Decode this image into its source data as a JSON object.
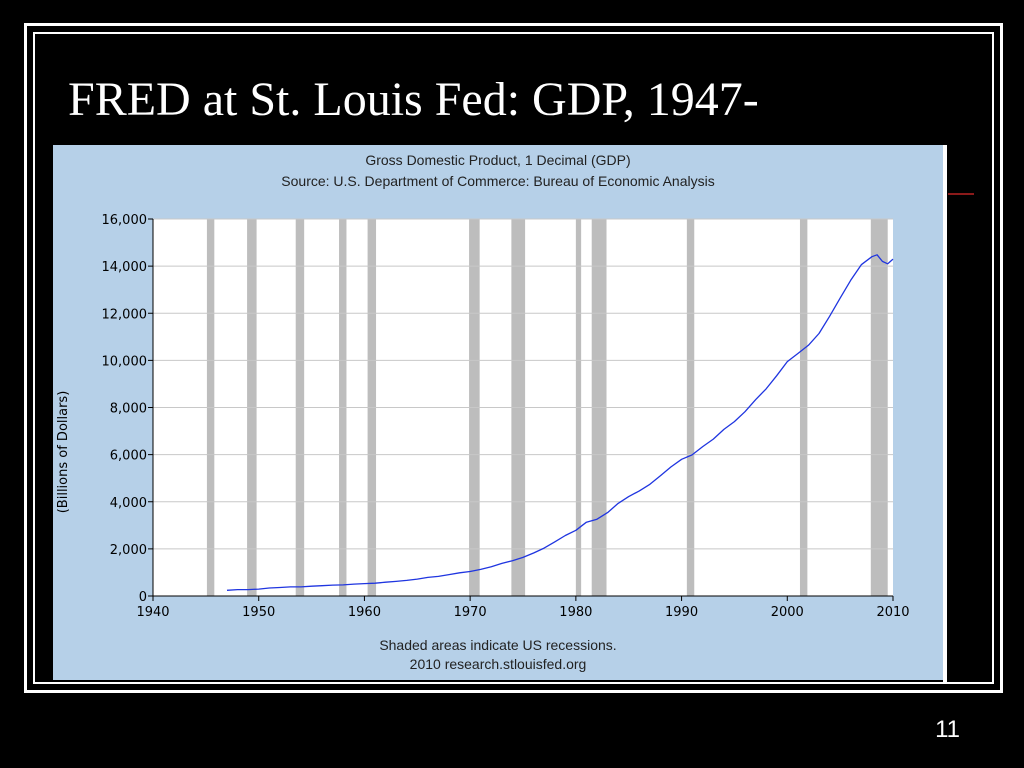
{
  "slide": {
    "title": "FRED at St. Louis Fed: GDP, 1947-",
    "page_number": "11"
  },
  "chart_data": {
    "type": "line",
    "title": "Gross Domestic Product, 1 Decimal (GDP)",
    "subtitle": "Source: U.S. Department of Commerce: Bureau of Economic Analysis",
    "xlabel": "",
    "ylabel": "(Billions of Dollars)",
    "xlim": [
      1940,
      2010
    ],
    "ylim": [
      0,
      16000
    ],
    "x_ticks": [
      1940,
      1950,
      1960,
      1970,
      1980,
      1990,
      2000,
      2010
    ],
    "y_ticks": [
      0,
      2000,
      4000,
      6000,
      8000,
      10000,
      12000,
      14000,
      16000
    ],
    "y_tick_labels": [
      "0",
      "2,000",
      "4,000",
      "6,000",
      "8,000",
      "10,000",
      "12,000",
      "14,000",
      "16,000"
    ],
    "grid": true,
    "series": [
      {
        "color": "#1f35e0",
        "x": [
          1947,
          1948,
          1949,
          1950,
          1951,
          1952,
          1953,
          1954,
          1955,
          1956,
          1957,
          1958,
          1959,
          1960,
          1961,
          1962,
          1963,
          1964,
          1965,
          1966,
          1967,
          1968,
          1969,
          1970,
          1971,
          1972,
          1973,
          1974,
          1975,
          1976,
          1977,
          1978,
          1979,
          1980,
          1981,
          1982,
          1983,
          1984,
          1985,
          1986,
          1987,
          1988,
          1989,
          1990,
          1991,
          1992,
          1993,
          1994,
          1995,
          1996,
          1997,
          1998,
          1999,
          2000,
          2001,
          2002,
          2003,
          2004,
          2005,
          2006,
          2007,
          2008,
          2008.5,
          2009,
          2009.5,
          2010
        ],
        "y": [
          244,
          270,
          272,
          294,
          340,
          360,
          385,
          385,
          415,
          438,
          462,
          470,
          506,
          526,
          545,
          586,
          618,
          663,
          719,
          788,
          833,
          910,
          985,
          1040,
          1128,
          1238,
          1382,
          1500,
          1638,
          1825,
          2031,
          2295,
          2566,
          2790,
          3130,
          3260,
          3540,
          3930,
          4220,
          4460,
          4740,
          5100,
          5480,
          5800,
          5990,
          6340,
          6660,
          7070,
          7400,
          7820,
          8330,
          8790,
          9350,
          9950,
          10290,
          10640,
          11140,
          11870,
          12640,
          13400,
          14060,
          14400,
          14480,
          14200,
          14100,
          14300
        ]
      }
    ],
    "recession_bands": [
      [
        1945.1,
        1945.8
      ],
      [
        1948.9,
        1949.8
      ],
      [
        1953.5,
        1954.3
      ],
      [
        1957.6,
        1958.3
      ],
      [
        1960.3,
        1961.1
      ],
      [
        1969.9,
        1970.9
      ],
      [
        1973.9,
        1975.2
      ],
      [
        1980.0,
        1980.5
      ],
      [
        1981.5,
        1982.9
      ],
      [
        1990.5,
        1991.2
      ],
      [
        2001.2,
        2001.9
      ],
      [
        2007.9,
        2009.5
      ]
    ],
    "notes": [
      "Shaded areas indicate US recessions.",
      "2010 research.stlouisfed.org"
    ]
  }
}
